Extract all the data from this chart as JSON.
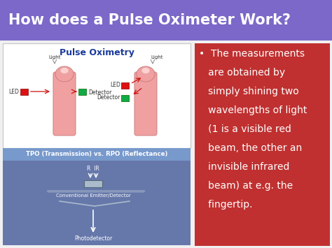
{
  "title": "How does a Pulse Oximeter Work?",
  "title_bg": "#7B68C8",
  "title_color": "#FFFFFF",
  "slide_bg": "#F0F0F0",
  "left_panel_bg": "#FFFFFF",
  "pulse_ox_title": "Pulse Oximetry",
  "pulse_ox_title_color": "#1A3A9A",
  "tpo_text": "TPO (Transmission) vs. RPO (Reflectance)",
  "tpo_bg": "#7799CC",
  "tpo_text_color": "#FFFFFF",
  "bottom_panel_bg": "#6677AA",
  "bottom_label_emitter": "Conventional Emitter/Detector",
  "bottom_label_photodetector": "Photodetector",
  "right_panel_bg": "#C03030",
  "bullet_lines": [
    "•  The measurements",
    "   are obtained by",
    "   simply shining two",
    "   wavelengths of light",
    "   (1 is a visible red",
    "   beam, the other an",
    "   invisible infrared",
    "   beam) at e.g. the",
    "   fingertip."
  ],
  "bullet_color": "#FFFFFF",
  "finger_color": "#F0A0A0",
  "finger_edge": "#CC8080",
  "nail_color": "#FFD0D0",
  "led_color": "#DD1111",
  "det_color": "#11AA44"
}
